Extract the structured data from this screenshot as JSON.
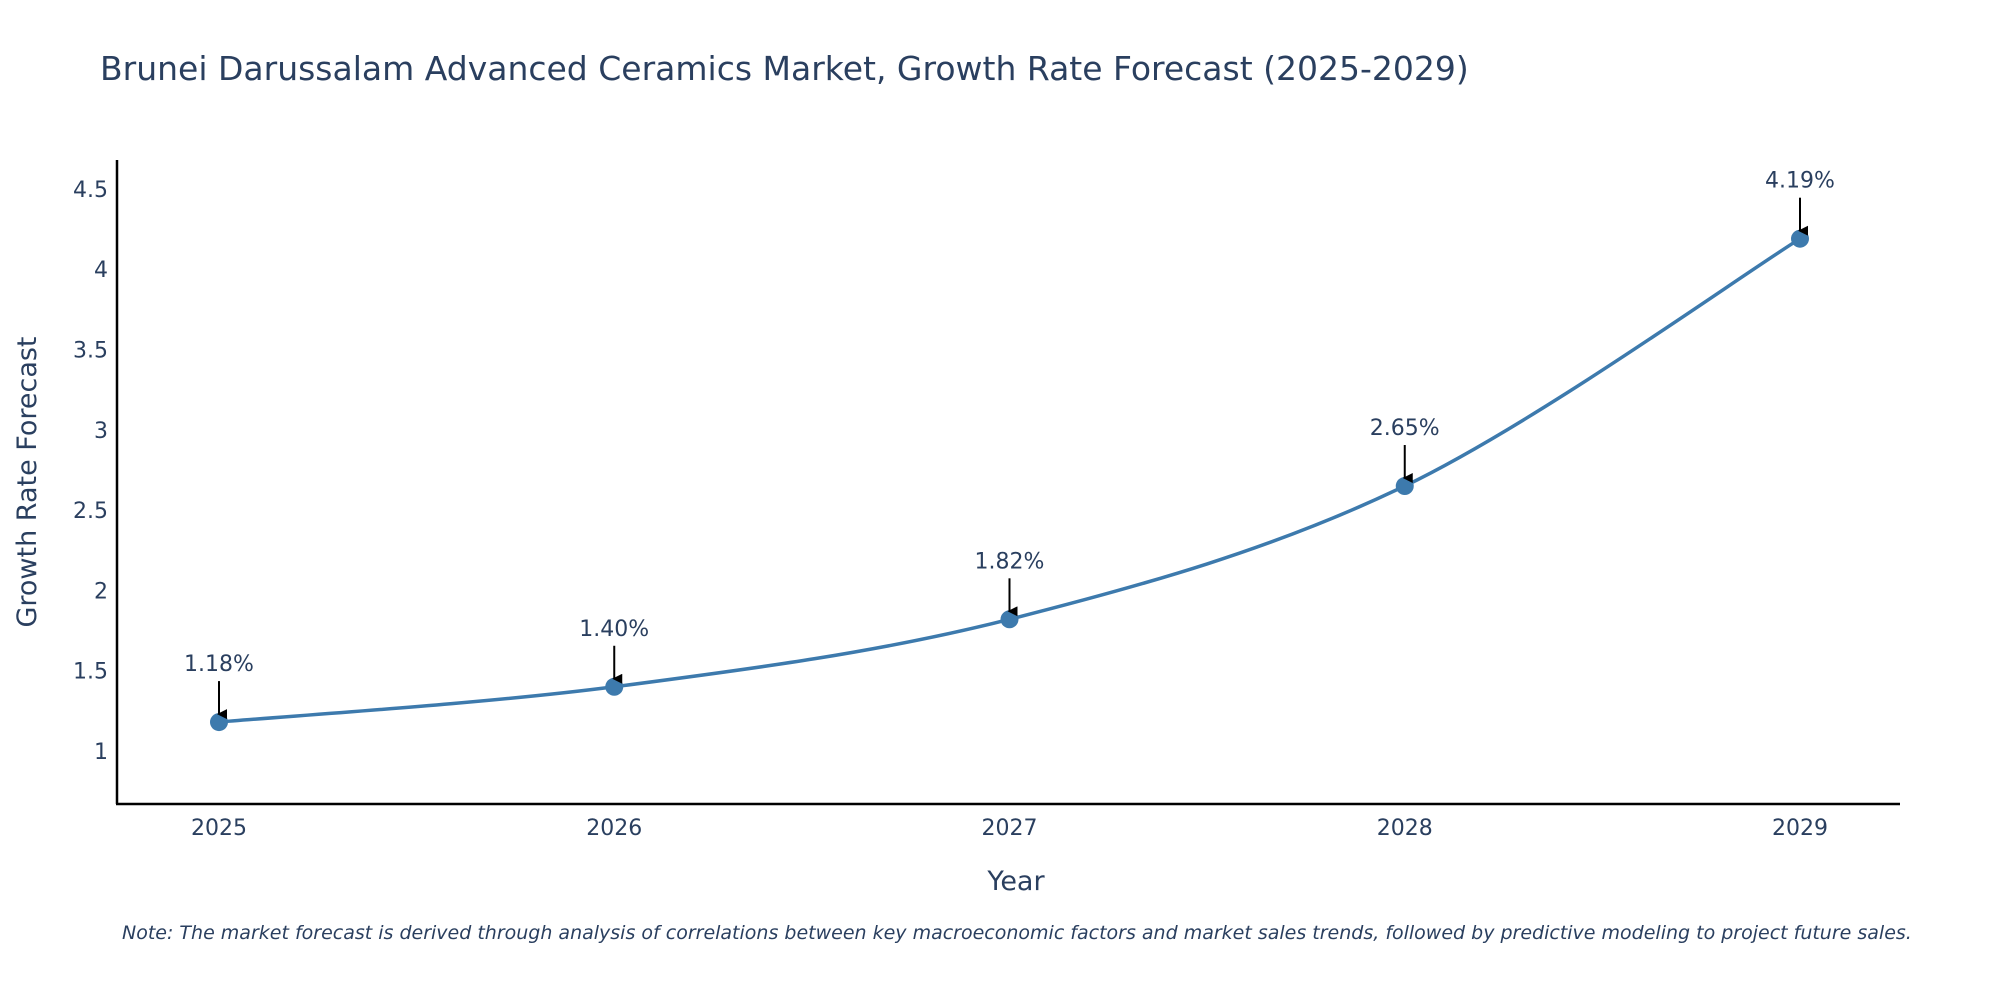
{
  "chart_data": {
    "type": "line",
    "title": "Brunei Darussalam Advanced Ceramics Market, Growth Rate Forecast (2025-2029)",
    "xlabel": "Year",
    "ylabel": "Growth Rate Forecast",
    "categories": [
      "2025",
      "2026",
      "2027",
      "2028",
      "2029"
    ],
    "series": [
      {
        "name": "Growth Rate Forecast",
        "values": [
          1.18,
          1.4,
          1.82,
          2.65,
          4.19
        ]
      }
    ],
    "data_labels": [
      "1.18%",
      "1.40%",
      "1.82%",
      "2.65%",
      "4.19%"
    ],
    "yticks": [
      1,
      1.5,
      2,
      2.5,
      3,
      3.5,
      4,
      4.5
    ],
    "ytick_labels": [
      "1",
      "1.5",
      "2",
      "2.5",
      "3",
      "3.5",
      "4",
      "4.5"
    ],
    "ylim": [
      0.67,
      4.68
    ],
    "grid": false,
    "legend": "none",
    "line_color": "#3d7aad",
    "axis_color": "#000000",
    "arrow_color": "#000000",
    "note": "Note: The market forecast is derived through analysis of correlations between key macroeconomic factors and market sales trends, followed by predictive modeling to project future sales."
  }
}
